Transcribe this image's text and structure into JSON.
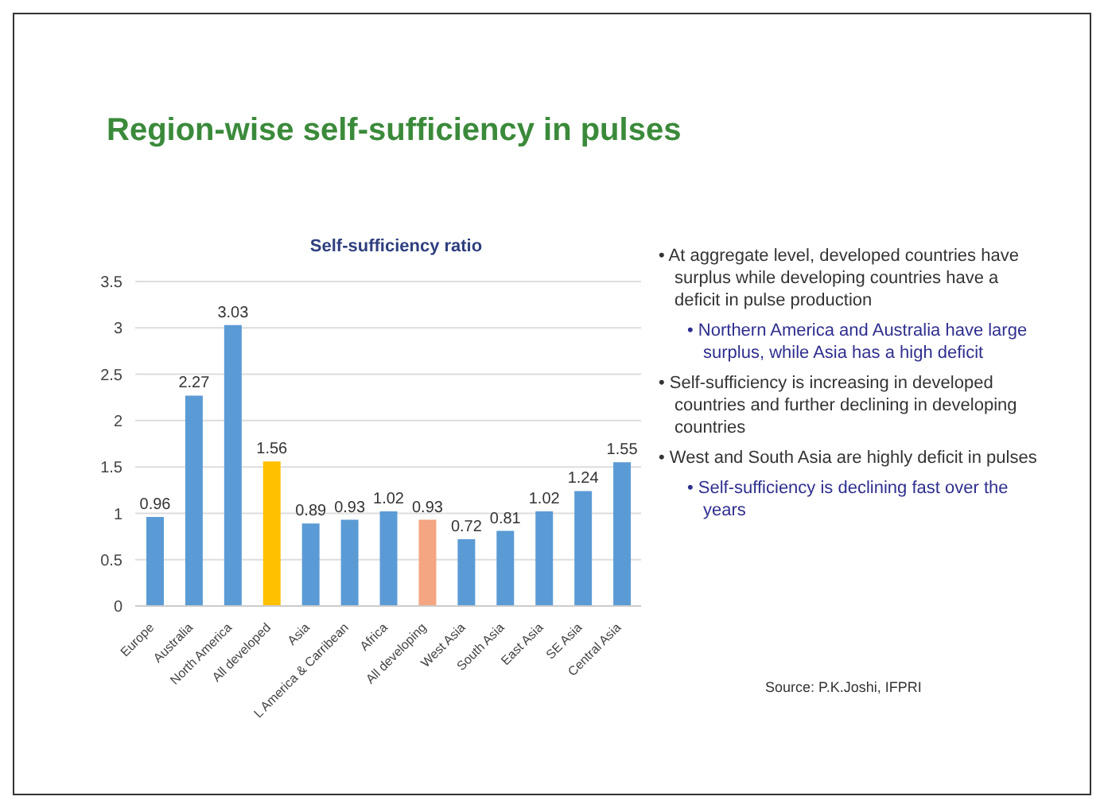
{
  "chart_data": {
    "type": "bar",
    "title": "Region-wise self-sufficiency in pulses",
    "subtitle": "Self-sufficiency ratio",
    "categories": [
      "Europe",
      "Australia",
      "North America",
      "All developed",
      "Asia",
      "L America & Carribean",
      "Africa",
      "All developing",
      "West Asia",
      "South Asia",
      "East Asia",
      "SE Asia",
      "Central Asia"
    ],
    "values": [
      0.96,
      2.27,
      3.03,
      1.56,
      0.89,
      0.93,
      1.02,
      0.93,
      0.72,
      0.81,
      1.02,
      1.24,
      1.55
    ],
    "colors": [
      "#5b9bd5",
      "#5b9bd5",
      "#5b9bd5",
      "#ffc000",
      "#5b9bd5",
      "#5b9bd5",
      "#5b9bd5",
      "#f4a582",
      "#5b9bd5",
      "#5b9bd5",
      "#5b9bd5",
      "#5b9bd5",
      "#5b9bd5"
    ],
    "ylim": [
      0,
      3.5
    ],
    "yticks": [
      0,
      0.5,
      1,
      1.5,
      2,
      2.5,
      3,
      3.5
    ],
    "grid": "y",
    "data_labels": true,
    "annotations": [
      "• At aggregate level, developed countries have surplus while developing countries have a deficit in pulse production",
      "• Northern America and Australia have large surplus, while Asia has a high deficit",
      "• Self-sufficiency is increasing in developed countries and further declining in developing countries",
      "• West and South Asia are highly deficit in pulses",
      "• Self-sufficiency is declining fast over the years",
      "Source: P.K.Joshi, IFPRI"
    ]
  }
}
